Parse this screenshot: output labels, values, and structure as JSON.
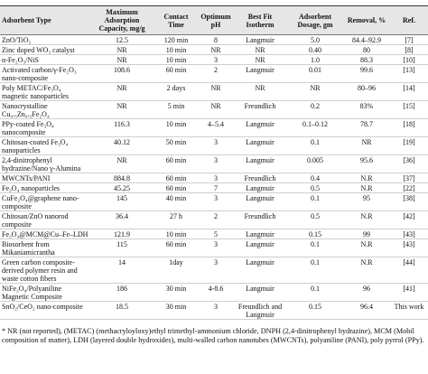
{
  "table": {
    "header": [
      "Adsorbent Type",
      "Maximum Adsorption Capacity, mg/g",
      "Contact Time",
      "Optimum pH",
      "Best Fit Isotherm",
      "Adsorbent Dosage, gm",
      "Removal, %",
      "Ref."
    ],
    "rows": [
      [
        "ZnO/TiO₂",
        "12.5",
        "120 min",
        "8",
        "Langmuir",
        "5.0",
        "84.4–92.9",
        "[7]"
      ],
      [
        "Zinc doped WO₃ catalyst",
        "NR",
        "10 min",
        "NR",
        "NR",
        "0.40",
        "80",
        "[8]"
      ],
      [
        "α-Fe₂O₃/NiS",
        "NR",
        "10 min",
        "3",
        "NR",
        "1.0",
        "88.3",
        "[10]"
      ],
      [
        "Activated carbon/γ-Fe₂O₃ nano-composite",
        "108.6",
        "60 min",
        "2",
        "Langmuir",
        "0.01",
        "99.6",
        "[13]"
      ],
      [
        "Poly METAC/Fe₃O₄ magnetic nanoparticles",
        "NR",
        "2 days",
        "NR",
        "NR",
        "NR",
        "80–96",
        "[14]"
      ],
      [
        "Nanocrystalline Cu₀.₅Zn₀.₅Fe₂O₄",
        "NR",
        "5 min",
        "NR",
        "Freundlich",
        "0.2",
        "83%",
        "[15]"
      ],
      [
        "PPy-coated Fe₃O₄ nanocomposite",
        "116.3",
        "10 min",
        "4–5.4",
        "Langmuir",
        "0.1–0.12",
        "78.7",
        "[18]"
      ],
      [
        "Chitosan-coated Fe₃O₄ nanoparticles",
        "40.12",
        "50 min",
        "3",
        "Langmuir",
        "0.1",
        "NR",
        "[19]"
      ],
      [
        "2,4-dinitrophenyl hydrazine/Nano γ-Alumina",
        "NR",
        "60 min",
        "3",
        "Langmuir",
        "0.005",
        "95.6",
        "[36]"
      ],
      [
        "MWCNTs/PANI",
        "884.8",
        "60 min",
        "3",
        "Freundlich",
        "0.4",
        "N.R",
        "[37]"
      ],
      [
        "Fe₃O₄ nanoparticles",
        "45.25",
        "60 min",
        "7",
        "Langmuir",
        "0.5",
        "N.R",
        "[22]"
      ],
      [
        "CuFe₂O₄@graphene nano-composite",
        "145",
        "40 min",
        "3",
        "Langmuir",
        "0.1",
        "95",
        "[38]"
      ],
      [
        "Chitosan/ZnO nanorod composite",
        "36.4",
        "27 h",
        "2",
        "Freundlich",
        "0.5",
        "N.R",
        "[42]"
      ],
      [
        "Fe₃O₄@MCM@Cu–Fe–LDH",
        "121.9",
        "10 min",
        "5",
        "Langmuir",
        "0.15",
        "99",
        "[43]"
      ],
      [
        "Biosorbent from Mikaniamicrantha",
        "115",
        "60 min",
        "3",
        "Langmuir",
        "0.1",
        "N.R",
        "[43]"
      ],
      [
        "Green carbon composite-derived polymer resin and waste cotton fibers",
        "14",
        "1day",
        "3",
        "Langmuir",
        "0.1",
        "N.R",
        "[44]"
      ],
      [
        "NiFe₂O₄/Polyaniline Magnetic Composite",
        "186",
        "30 min",
        "4-8.6",
        "Langmuir",
        "0.1",
        "96",
        "[41]"
      ],
      [
        "SnO₂/CeO₂ nano-composite",
        "18.5",
        "30 min",
        "3",
        "Freundlich and Langmuir",
        "0.15",
        "96.4",
        "This work"
      ]
    ],
    "footnote": "* NR (not reported), (METAC) (methacryloyloxy)ethyl trimethyl-ammonium chloride, DNPH (2,4-dinitrophenyl hydrazine), MCM (Mobil composition of matter), LDH (layered double hydroxides), multi-walled carbon nanotubes (MWCNTs), polyaniline (PANI), poly pyrrol (PPy)."
  }
}
